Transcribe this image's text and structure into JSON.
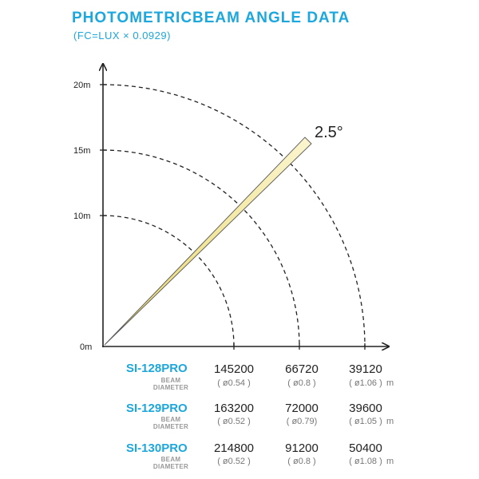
{
  "title": "PHOTOMETRICBEAM ANGLE DATA",
  "subtitle": "(FC=LUX × 0.0929)",
  "diagram": {
    "y_labels": [
      "20m",
      "15m",
      "10m",
      "0m"
    ],
    "angle_label": "2.5°",
    "beam_fill_color": "#f2e8a0",
    "axis_color": "#222222",
    "accent_color": "#1ca7dd"
  },
  "table": {
    "beam_label_line1": "BEAM",
    "beam_label_line2": "DIAMETER",
    "unit": "m",
    "rows": [
      {
        "model": "SI-128PRO",
        "lux": [
          "145200",
          "66720",
          "39120"
        ],
        "diameter": [
          "( ø0.54 )",
          "( ø0.8 )",
          "( ø1.06 )"
        ]
      },
      {
        "model": "SI-129PRO",
        "lux": [
          "163200",
          "72000",
          "39600"
        ],
        "diameter": [
          "( ø0.52 )",
          "( ø0.79)",
          "( ø1.05 )"
        ]
      },
      {
        "model": "SI-130PRO",
        "lux": [
          "214800",
          "91200",
          "50400"
        ],
        "diameter": [
          "( ø0.52 )",
          "( ø0.8 )",
          "( ø1.08 )"
        ]
      }
    ]
  }
}
